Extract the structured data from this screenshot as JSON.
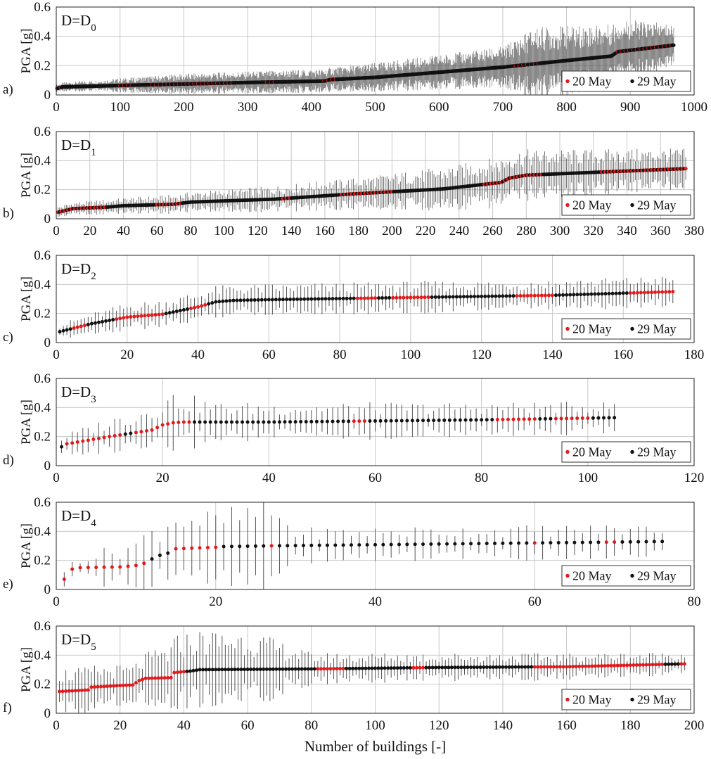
{
  "colors": {
    "red": "#e31a1c",
    "black": "#111111",
    "grid": "#c8c8c8",
    "bar": "#555555"
  },
  "legend": {
    "red_label": "20 May",
    "black_label": "29 May"
  },
  "ylabel": "PGA [g]",
  "xlabel": "Number of buildings [-]",
  "chart_data": [
    {
      "type": "scatter",
      "panel_label": "a)",
      "state_main": "D=D",
      "state_sub": "0",
      "xlim": [
        0,
        1000
      ],
      "xticks": [
        0,
        100,
        200,
        300,
        400,
        500,
        600,
        700,
        800,
        900,
        1000
      ],
      "ylim": [
        0,
        0.6
      ],
      "yticks": [
        0,
        0.2,
        0.4,
        0.6
      ],
      "n": 968,
      "curve": [
        [
          1,
          0.045
        ],
        [
          10,
          0.055
        ],
        [
          100,
          0.065
        ],
        [
          200,
          0.075
        ],
        [
          300,
          0.085
        ],
        [
          420,
          0.095
        ],
        [
          430,
          0.105
        ],
        [
          500,
          0.12
        ],
        [
          600,
          0.155
        ],
        [
          700,
          0.19
        ],
        [
          800,
          0.235
        ],
        [
          870,
          0.265
        ],
        [
          880,
          0.295
        ],
        [
          968,
          0.34
        ]
      ],
      "spread": [
        [
          1,
          0.02
        ],
        [
          200,
          0.05
        ],
        [
          430,
          0.06
        ],
        [
          700,
          0.1
        ],
        [
          750,
          0.18
        ],
        [
          900,
          0.15
        ],
        [
          968,
          0.1
        ]
      ],
      "red_segments": [
        [
          1,
          12
        ],
        [
          100,
          120
        ],
        [
          150,
          280
        ],
        [
          330,
          345
        ],
        [
          420,
          440
        ],
        [
          720,
          760
        ],
        [
          880,
          968
        ]
      ],
      "red_every": 6
    },
    {
      "type": "scatter",
      "panel_label": "b)",
      "state_main": "D=D",
      "state_sub": "1",
      "xlim": [
        0,
        380
      ],
      "xticks": [
        0,
        20,
        40,
        60,
        80,
        100,
        120,
        140,
        160,
        180,
        200,
        220,
        240,
        260,
        280,
        300,
        320,
        340,
        360,
        380
      ],
      "ylim": [
        0,
        0.6
      ],
      "yticks": [
        0,
        0.2,
        0.4,
        0.6
      ],
      "n": 375,
      "curve": [
        [
          1,
          0.045
        ],
        [
          10,
          0.07
        ],
        [
          30,
          0.08
        ],
        [
          40,
          0.09
        ],
        [
          70,
          0.1
        ],
        [
          80,
          0.115
        ],
        [
          130,
          0.135
        ],
        [
          175,
          0.17
        ],
        [
          230,
          0.205
        ],
        [
          265,
          0.25
        ],
        [
          270,
          0.28
        ],
        [
          280,
          0.3
        ],
        [
          300,
          0.31
        ],
        [
          375,
          0.345
        ]
      ],
      "spread": [
        [
          1,
          0.03
        ],
        [
          80,
          0.05
        ],
        [
          180,
          0.08
        ],
        [
          270,
          0.13
        ],
        [
          300,
          0.12
        ],
        [
          375,
          0.1
        ]
      ],
      "red_segments": [
        [
          1,
          30
        ],
        [
          60,
          75
        ],
        [
          135,
          140
        ],
        [
          170,
          200
        ],
        [
          255,
          290
        ],
        [
          325,
          375
        ]
      ],
      "red_every": 2
    },
    {
      "type": "scatter",
      "panel_label": "c)",
      "state_main": "D=D",
      "state_sub": "2",
      "xlim": [
        0,
        180
      ],
      "xticks": [
        0,
        20,
        40,
        60,
        80,
        100,
        120,
        140,
        160,
        180
      ],
      "ylim": [
        0,
        0.6
      ],
      "yticks": [
        0,
        0.2,
        0.4,
        0.6
      ],
      "n": 174,
      "curve": [
        [
          1,
          0.075
        ],
        [
          10,
          0.13
        ],
        [
          20,
          0.175
        ],
        [
          30,
          0.195
        ],
        [
          40,
          0.245
        ],
        [
          45,
          0.28
        ],
        [
          50,
          0.29
        ],
        [
          60,
          0.295
        ],
        [
          100,
          0.31
        ],
        [
          140,
          0.325
        ],
        [
          174,
          0.35
        ]
      ],
      "spread": [
        [
          1,
          0.04
        ],
        [
          20,
          0.07
        ],
        [
          45,
          0.08
        ],
        [
          174,
          0.08
        ]
      ],
      "red_segments": [
        [
          5,
          8
        ],
        [
          17,
          30
        ],
        [
          38,
          42
        ],
        [
          85,
          90
        ],
        [
          95,
          105
        ],
        [
          130,
          140
        ],
        [
          162,
          174
        ]
      ],
      "red_every": 1
    },
    {
      "type": "scatter",
      "panel_label": "d)",
      "state_main": "D=D",
      "state_sub": "3",
      "xlim": [
        0,
        120
      ],
      "xticks": [
        0,
        20,
        40,
        60,
        80,
        100,
        120
      ],
      "ylim": [
        0,
        0.6
      ],
      "yticks": [
        0,
        0.2,
        0.4,
        0.6
      ],
      "n": 105,
      "curve": [
        [
          1,
          0.13
        ],
        [
          2,
          0.15
        ],
        [
          10,
          0.2
        ],
        [
          18,
          0.245
        ],
        [
          20,
          0.28
        ],
        [
          22,
          0.295
        ],
        [
          24,
          0.3
        ],
        [
          40,
          0.3
        ],
        [
          80,
          0.315
        ],
        [
          105,
          0.33
        ]
      ],
      "spread": [
        [
          1,
          0.05
        ],
        [
          15,
          0.12
        ],
        [
          22,
          0.16
        ],
        [
          30,
          0.1
        ],
        [
          105,
          0.08
        ]
      ],
      "red_segments": [
        [
          2,
          12
        ],
        [
          15,
          25
        ],
        [
          56,
          58
        ],
        [
          83,
          90
        ],
        [
          94,
          100
        ]
      ],
      "red_every": 1
    },
    {
      "type": "scatter",
      "panel_label": "e)",
      "state_main": "D=D",
      "state_sub": "4",
      "xlim": [
        0,
        80
      ],
      "xticks": [
        0,
        20,
        40,
        60,
        80
      ],
      "ylim": [
        0,
        0.6
      ],
      "yticks": [
        0,
        0.2,
        0.4,
        0.6
      ],
      "n": 76,
      "curve": [
        [
          1,
          0.07
        ],
        [
          2,
          0.14
        ],
        [
          3,
          0.15
        ],
        [
          8,
          0.155
        ],
        [
          10,
          0.165
        ],
        [
          11,
          0.18
        ],
        [
          12,
          0.21
        ],
        [
          13,
          0.235
        ],
        [
          14,
          0.25
        ],
        [
          15,
          0.28
        ],
        [
          20,
          0.29
        ],
        [
          21,
          0.295
        ],
        [
          27,
          0.3
        ],
        [
          60,
          0.32
        ],
        [
          76,
          0.33
        ]
      ],
      "spread": [
        [
          1,
          0.04
        ],
        [
          8,
          0.12
        ],
        [
          15,
          0.23
        ],
        [
          20,
          0.18
        ],
        [
          27,
          0.25
        ],
        [
          30,
          0.09
        ],
        [
          76,
          0.09
        ]
      ],
      "red_segments": [
        [
          1,
          11
        ],
        [
          15,
          20
        ],
        [
          27,
          27
        ],
        [
          60,
          60
        ],
        [
          69,
          70
        ]
      ],
      "red_every": 1
    },
    {
      "type": "scatter",
      "panel_label": "f)",
      "state_main": "D=D",
      "state_sub": "5",
      "xlim": [
        0,
        200
      ],
      "xticks": [
        0,
        20,
        40,
        60,
        80,
        100,
        120,
        140,
        160,
        180,
        200
      ],
      "ylim": [
        0,
        0.6
      ],
      "yticks": [
        0,
        0.2,
        0.4,
        0.6
      ],
      "n": 197,
      "curve": [
        [
          1,
          0.15
        ],
        [
          10,
          0.16
        ],
        [
          11,
          0.18
        ],
        [
          24,
          0.195
        ],
        [
          26,
          0.225
        ],
        [
          28,
          0.24
        ],
        [
          36,
          0.245
        ],
        [
          37,
          0.28
        ],
        [
          42,
          0.29
        ],
        [
          45,
          0.3
        ],
        [
          80,
          0.305
        ],
        [
          120,
          0.315
        ],
        [
          160,
          0.32
        ],
        [
          197,
          0.34
        ]
      ],
      "spread": [
        [
          1,
          0.12
        ],
        [
          24,
          0.1
        ],
        [
          40,
          0.2
        ],
        [
          60,
          0.2
        ],
        [
          80,
          0.08
        ],
        [
          197,
          0.06
        ]
      ],
      "red_segments": [
        [
          1,
          40
        ],
        [
          82,
          90
        ],
        [
          112,
          115
        ],
        [
          150,
          190
        ],
        [
          196,
          197
        ]
      ],
      "red_every": 1
    }
  ]
}
